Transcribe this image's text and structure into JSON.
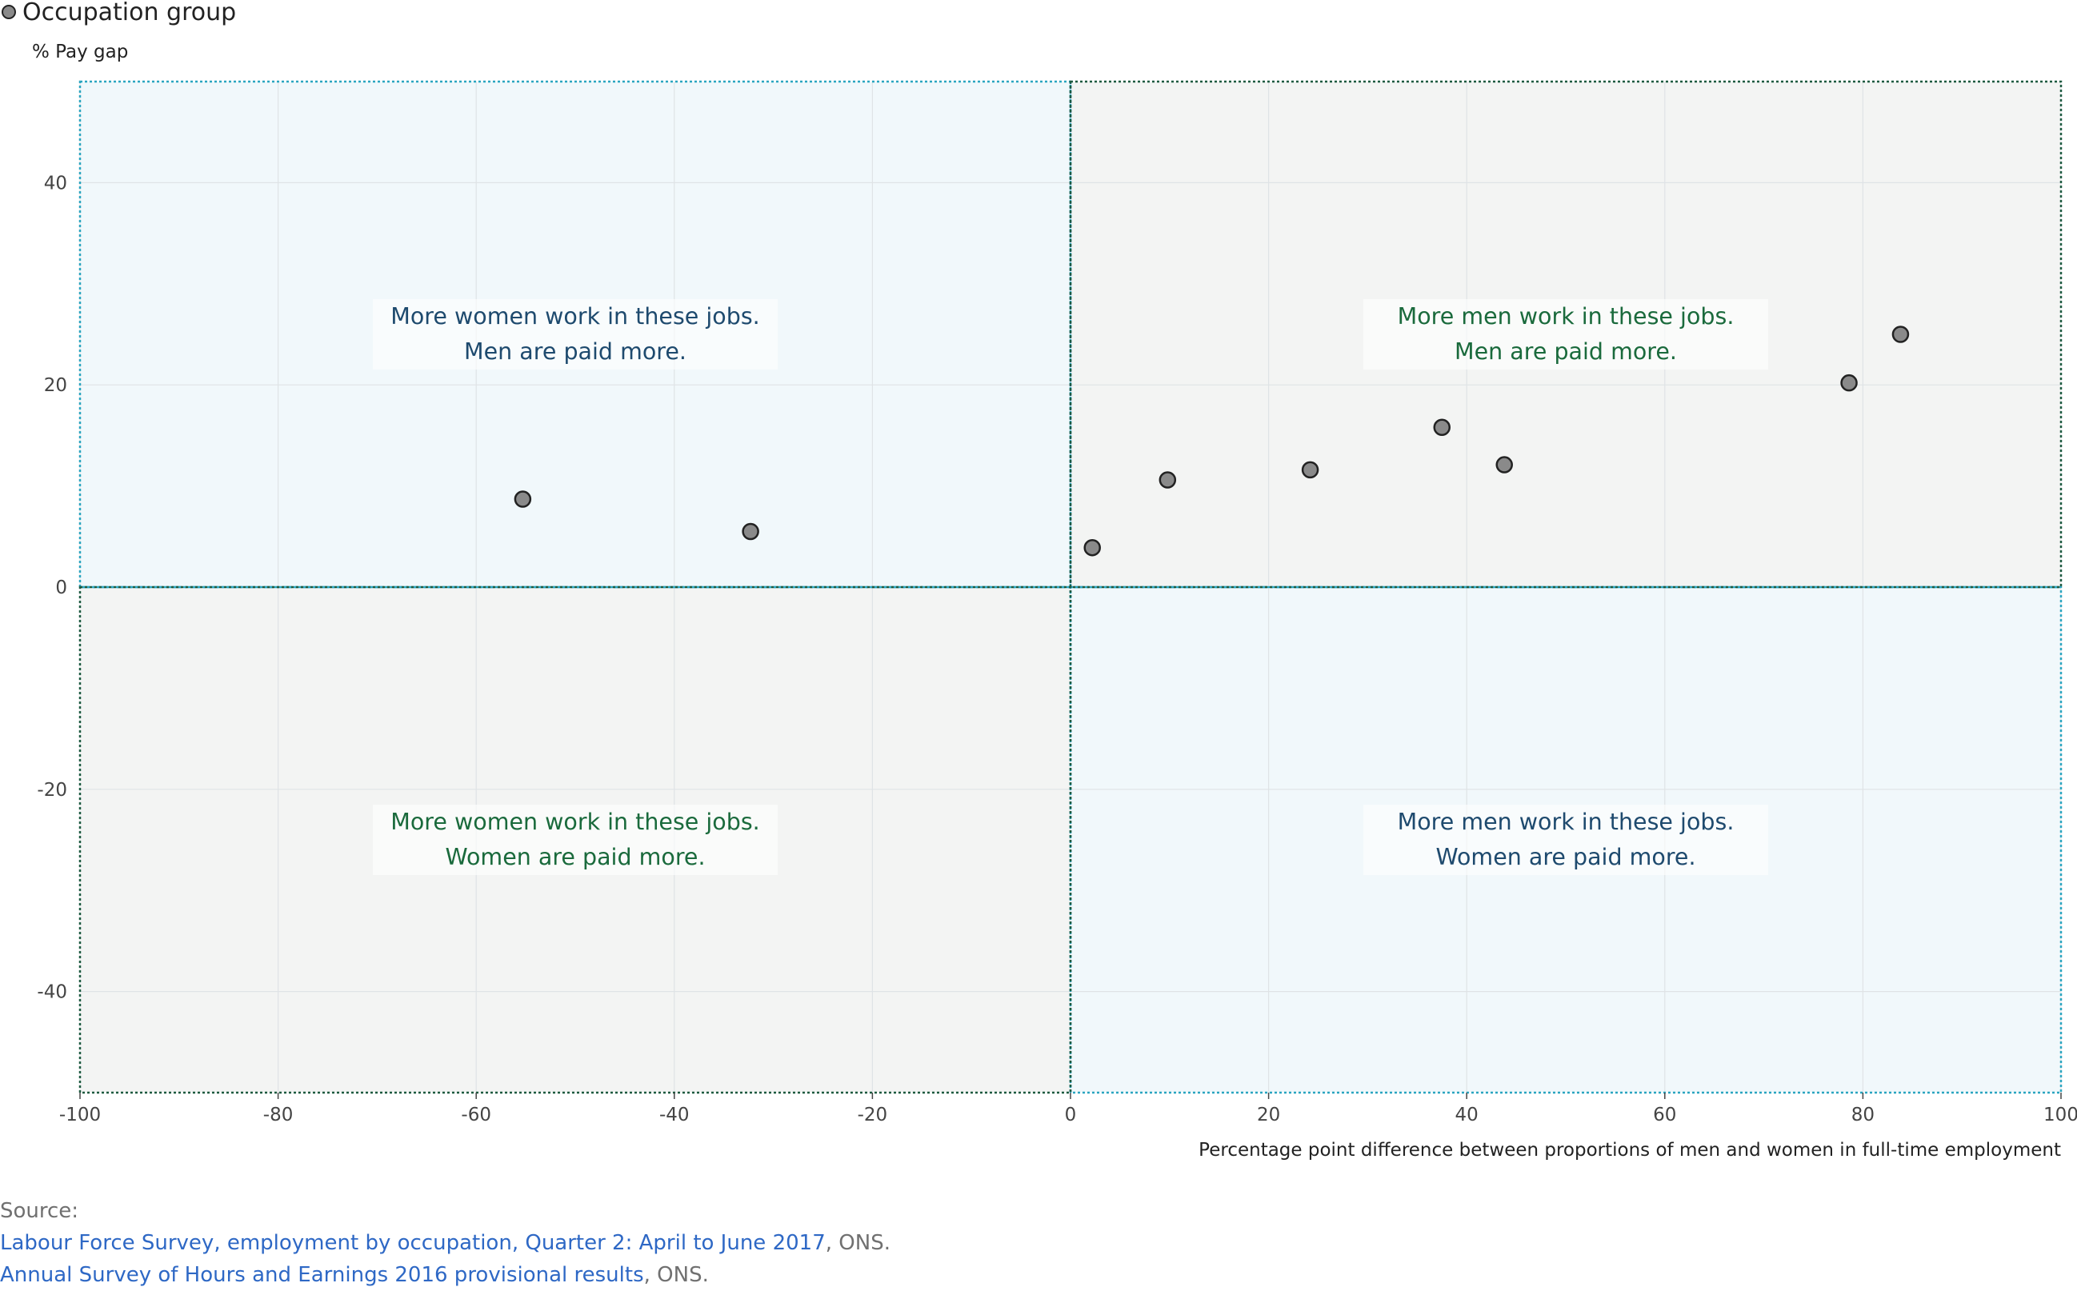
{
  "legend": {
    "label": "Occupation group"
  },
  "chart_data": {
    "type": "scatter",
    "ylabel": "% Pay gap",
    "xlabel": "Percentage point difference between proportions of men and women in full-time employment",
    "xlim": [
      -100,
      100
    ],
    "ylim": [
      -50,
      50
    ],
    "xticks": [
      -100,
      -80,
      -60,
      -40,
      -20,
      0,
      20,
      40,
      60,
      80,
      100
    ],
    "yticks": [
      -40,
      -20,
      0,
      20,
      40
    ],
    "grid": true,
    "legend_position": "top-left",
    "series": [
      {
        "name": "Occupation group",
        "points": [
          {
            "x": -55.3,
            "y": 8.7
          },
          {
            "x": -32.3,
            "y": 5.5
          },
          {
            "x": 2.2,
            "y": 3.9
          },
          {
            "x": 9.8,
            "y": 10.6
          },
          {
            "x": 24.2,
            "y": 11.6
          },
          {
            "x": 37.5,
            "y": 15.8
          },
          {
            "x": 43.8,
            "y": 12.1
          },
          {
            "x": 78.6,
            "y": 20.2
          },
          {
            "x": 83.8,
            "y": 25.0
          }
        ]
      }
    ],
    "quadrants": [
      {
        "id": "top-left",
        "lines": [
          "More women work in these jobs.",
          "Men are paid more."
        ],
        "text_color": "#1e4a6e",
        "fill": "#f1f8fb"
      },
      {
        "id": "top-right",
        "lines": [
          "More men work in these jobs.",
          "Men are paid more."
        ],
        "text_color": "#1a6a3c",
        "fill": "#f3f4f3"
      },
      {
        "id": "bottom-left",
        "lines": [
          "More women work in these jobs.",
          "Women are paid more."
        ],
        "text_color": "#1a6a3c",
        "fill": "#f3f4f3"
      },
      {
        "id": "bottom-right",
        "lines": [
          "More men work in these jobs.",
          "Women are paid more."
        ],
        "text_color": "#1e4a6e",
        "fill": "#f1f8fb"
      }
    ],
    "colors": {
      "marker_fill": "#8a8a8a",
      "marker_stroke": "#222222",
      "zero_line": "#2a8fb0",
      "teal_border": "#2aa5c0",
      "green_border": "#1d5a40"
    }
  },
  "source": {
    "label": "Source:",
    "line1_link": "Labour Force Survey, employment by occupation, Quarter 2: April to June 2017",
    "line1_suffix": ", ONS.",
    "line2_link": "Annual Survey of Hours and Earnings 2016 provisional results",
    "line2_suffix": ", ONS."
  }
}
